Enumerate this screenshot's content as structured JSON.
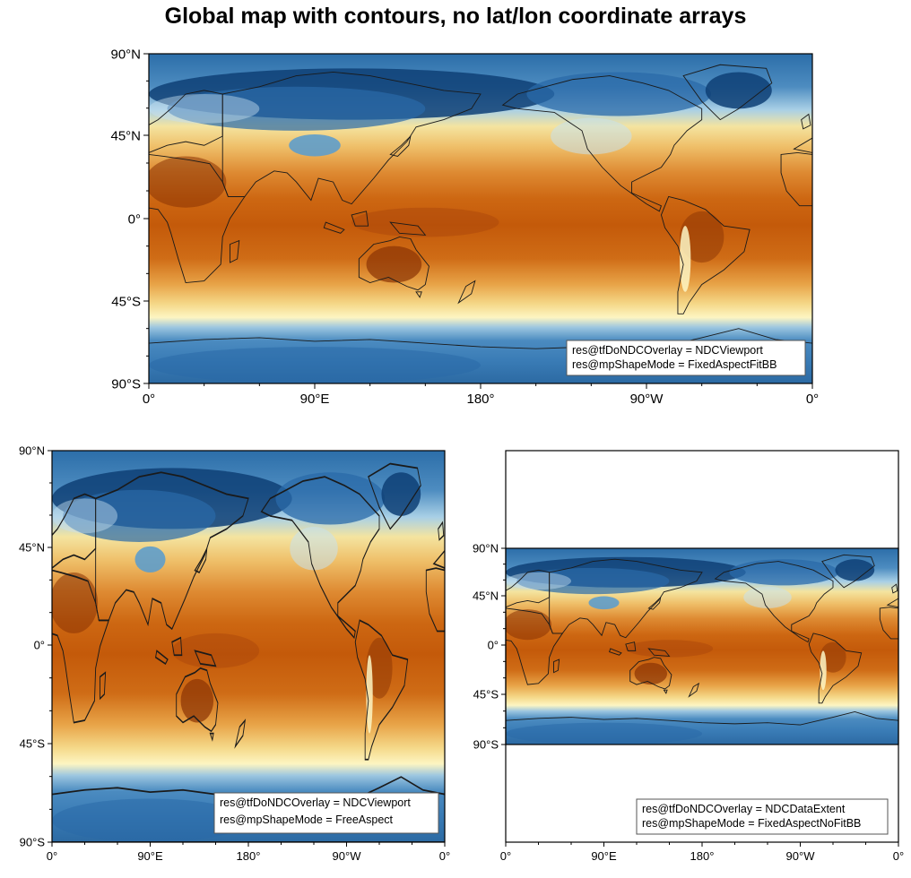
{
  "title": "Global map with contours, no lat/lon coordinate arrays",
  "colors": {
    "hot": "#8a3304",
    "warm": "#c9620e",
    "mid": "#e8a448",
    "pale": "#f5df90",
    "light": "#fdf6c4",
    "cold_light": "#c7e1ef",
    "cold": "#5e9dcb",
    "cold_dark": "#2a6aa8",
    "coldest": "#0e3f76"
  },
  "maps": [
    {
      "id": "top",
      "lat_labels": [
        "90°N",
        "45°N",
        "0°",
        "45°S",
        "90°S"
      ],
      "lon_labels": [
        "0°",
        "90°E",
        "180°",
        "90°W",
        "0°"
      ],
      "legend": [
        "res@tfDoNDCOverlay = NDCViewport",
        "res@mpShapeMode = FixedAspectFitBB"
      ]
    },
    {
      "id": "bottom-left",
      "lat_labels": [
        "90°N",
        "45°N",
        "0°",
        "45°S",
        "90°S"
      ],
      "lon_labels": [
        "0°",
        "90°E",
        "180°",
        "90°W",
        "0°"
      ],
      "legend": [
        "res@tfDoNDCOverlay = NDCViewport",
        "res@mpShapeMode = FreeAspect"
      ]
    },
    {
      "id": "bottom-right",
      "lat_labels": [
        "90°N",
        "45°N",
        "0°",
        "45°S",
        "90°S"
      ],
      "lon_labels": [
        "0°",
        "90°E",
        "180°",
        "90°W",
        "0°"
      ],
      "legend": [
        "res@tfDoNDCOverlay = NDCDataExtent",
        "res@mpShapeMode = FixedAspectNoFitBB"
      ]
    }
  ]
}
